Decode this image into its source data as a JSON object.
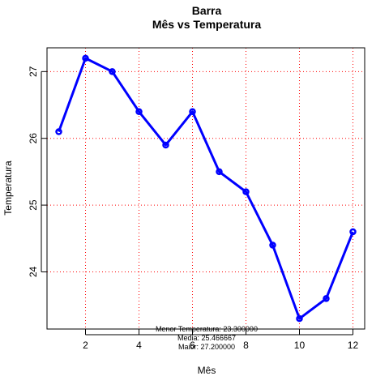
{
  "chart_data": {
    "type": "line",
    "title": "Barra",
    "subtitle": "Mês vs Temperatura",
    "xlabel": "Mês",
    "ylabel": "Temperatura",
    "x": [
      1,
      2,
      3,
      4,
      5,
      6,
      7,
      8,
      9,
      10,
      11,
      12
    ],
    "y": [
      26.1,
      27.2,
      27.0,
      26.4,
      25.9,
      26.4,
      25.5,
      25.2,
      24.4,
      23.3,
      23.6,
      24.6
    ],
    "xticks": [
      2,
      4,
      6,
      8,
      10,
      12
    ],
    "yticks": [
      24,
      25,
      26,
      27
    ],
    "xlim": [
      0.56,
      12.44
    ],
    "ylim": [
      23.144,
      27.356
    ],
    "grid": true,
    "series_color": "#0000ff",
    "grid_color": "#ff0000",
    "annotations": [
      "Menor Temperatura: 23.300000",
      "Media: 25.466667",
      "Maior: 27.200000"
    ]
  }
}
